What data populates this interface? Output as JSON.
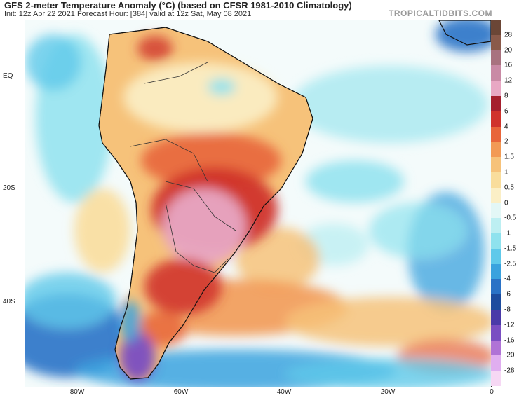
{
  "header": {
    "title": "GFS 2-meter Temperature Anomaly (°C) (based on CFSR 1981-2010 Climatology)",
    "subtitle": "Init: 12z Apr 22 2021   Forecast Hour: [384]   valid at 12z Sat, May 08 2021",
    "brand": "TROPICALTIDBITS.COM"
  },
  "axes": {
    "lat_labels": [
      {
        "text": "EQ",
        "lat": 0
      },
      {
        "text": "20S",
        "lat": -20
      },
      {
        "text": "40S",
        "lat": -40
      }
    ],
    "lon_labels": [
      {
        "text": "80W",
        "lon": -80
      },
      {
        "text": "60W",
        "lon": -60
      },
      {
        "text": "40W",
        "lon": -40
      },
      {
        "text": "20W",
        "lon": -20
      },
      {
        "text": "0",
        "lon": 0
      }
    ]
  },
  "colorbar": {
    "labels": [
      "28",
      "20",
      "16",
      "12",
      "8",
      "6",
      "4",
      "2",
      "1.5",
      "1",
      "0.5",
      "0",
      "-0.5",
      "-1",
      "-1.5",
      "-2.5",
      "-4",
      "-6",
      "-8",
      "-12",
      "-16",
      "-20",
      "-28"
    ],
    "colors": [
      "#6b4636",
      "#8a5a4a",
      "#a8727f",
      "#c98aa5",
      "#e8a8c4",
      "#a51f2e",
      "#d0332c",
      "#e8653a",
      "#f29a55",
      "#f6c27a",
      "#f9dd9c",
      "#fbefc6",
      "#e3f7f6",
      "#bdeff2",
      "#8fe2ee",
      "#5fc9ea",
      "#3aa2de",
      "#2a72c6",
      "#1d4c9e",
      "#4a3aa8",
      "#7a4ec2",
      "#b073d6",
      "#e0aef0",
      "#f6d8f4"
    ]
  },
  "map": {
    "description_colors": {
      "ocean_warm": "#f9dd9c",
      "ocean_cool": "#8fe2ee",
      "land_hot": "#d0332c",
      "land_very_hot": "#e8a8c4",
      "south_cold": "#2a72c6",
      "patagonia_cold": "#7a4ec2"
    }
  }
}
